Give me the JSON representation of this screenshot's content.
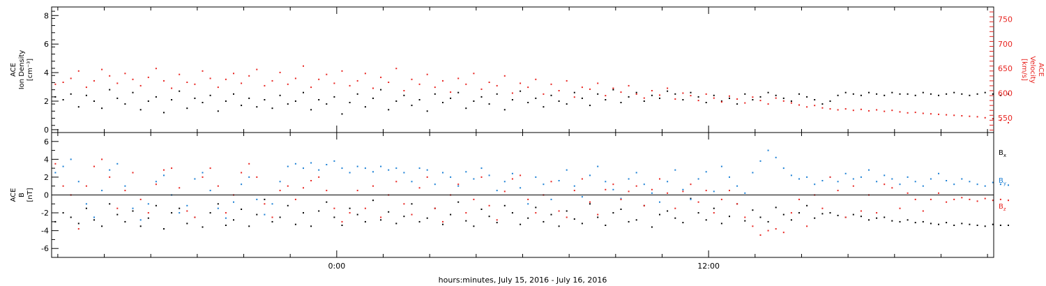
{
  "chart_data": [
    {
      "type": "scatter",
      "title": "",
      "xlabel": "hours:minutes, July 15, 2016 - July 16, 2016",
      "ylabel": "ACE Ion Density [cm⁻³]",
      "left_axis": {
        "label_lines": [
          "ACE",
          "Ion Density",
          "[cm⁻³]"
        ],
        "ylim": [
          -0.2,
          8.6
        ],
        "ticks": [
          0,
          2,
          4,
          6,
          8
        ],
        "color": "#000000"
      },
      "right_axis": {
        "label_lines": [
          "ACE",
          "Velocity",
          "[km/s]"
        ],
        "ylim": [
          520,
          775
        ],
        "ticks": [
          550,
          600,
          650,
          700,
          750
        ],
        "color": "#e8231f"
      },
      "series": [
        {
          "axis": "left",
          "color": "#000000",
          "x_start": -9.1,
          "step_hours": 0.25,
          "values": [
            2.3,
            2.1,
            2.5,
            1.6,
            2.4,
            2.0,
            1.5,
            2.8,
            2.2,
            1.8,
            2.6,
            1.4,
            2.0,
            2.3,
            1.2,
            2.1,
            2.7,
            1.5,
            2.2,
            1.9,
            2.4,
            1.3,
            2.0,
            2.5,
            1.7,
            2.2,
            1.6,
            2.1,
            1.5,
            2.4,
            1.8,
            2.0,
            2.6,
            1.4,
            2.1,
            1.8,
            2.3,
            1.1,
            1.9,
            2.5,
            1.6,
            2.2,
            2.8,
            1.4,
            2.0,
            2.4,
            1.7,
            2.1,
            1.3,
            2.5,
            1.9,
            2.2,
            2.6,
            1.5,
            2.0,
            2.3,
            1.8,
            2.5,
            1.4,
            2.1,
            2.7,
            1.9,
            2.2,
            1.6,
            2.4,
            2.0,
            1.8,
            2.6,
            2.2,
            1.7,
            2.5,
            2.1,
            2.8,
            1.9,
            2.3,
            2.6,
            2.0,
            2.4,
            2.2,
            2.7,
            2.5,
            2.1,
            2.6,
            2.3,
            1.9,
            2.4,
            2.0,
            2.2,
            1.8,
            2.5,
            2.1,
            2.3,
            2.6,
            2.4,
            2.2,
            2.0,
            2.5,
            2.3,
            2.1,
            1.8,
            2.0,
            2.4,
            2.6,
            2.5,
            2.4,
            2.6,
            2.5,
            2.4,
            2.6,
            2.5,
            2.5,
            2.4,
            2.6,
            2.5,
            2.4,
            2.5,
            2.6,
            2.5,
            2.4,
            2.5,
            2.6,
            2.5,
            2.4,
            2.5
          ]
        },
        {
          "axis": "right",
          "color": "#e8231f",
          "x_start": -9.1,
          "step_hours": 0.25,
          "values": [
            618,
            622,
            630,
            645,
            612,
            625,
            648,
            635,
            620,
            640,
            628,
            615,
            632,
            650,
            625,
            610,
            638,
            622,
            618,
            645,
            630,
            612,
            628,
            640,
            620,
            635,
            648,
            615,
            625,
            642,
            618,
            630,
            655,
            612,
            628,
            638,
            620,
            645,
            615,
            625,
            640,
            610,
            632,
            622,
            650,
            605,
            628,
            618,
            638,
            612,
            625,
            602,
            630,
            618,
            640,
            608,
            622,
            615,
            635,
            600,
            620,
            612,
            628,
            598,
            618,
            605,
            625,
            592,
            612,
            608,
            620,
            595,
            610,
            602,
            615,
            598,
            590,
            605,
            596,
            610,
            588,
            600,
            595,
            585,
            598,
            590,
            582,
            594,
            588,
            580,
            592,
            585,
            578,
            590,
            584,
            580,
            576,
            572,
            575,
            570,
            568,
            566,
            568,
            565,
            567,
            564,
            566,
            563,
            565,
            562,
            560,
            561,
            559,
            558,
            557,
            556,
            555,
            554,
            553,
            552,
            550,
            548,
            545,
            540
          ]
        }
      ]
    },
    {
      "type": "scatter",
      "title": "",
      "xlabel": "hours:minutes, July 15, 2016 - July 16, 2016",
      "ylabel": "ACE B [nT]",
      "left_axis": {
        "label_lines": [
          "ACE",
          "B",
          "[nT]"
        ],
        "ylim": [
          -7,
          7
        ],
        "ticks": [
          -6,
          -4,
          -2,
          0,
          2,
          4,
          6
        ],
        "color": "#000000"
      },
      "zero_line": true,
      "legend": {
        "placement": "right",
        "entries": [
          {
            "base": "B",
            "sub": "x",
            "color": "#000000"
          },
          {
            "base": "B",
            "sub": "y",
            "color": "#1a7fd4"
          },
          {
            "base": "B",
            "sub": "z",
            "color": "#e8231f"
          }
        ]
      },
      "series": [
        {
          "name": "Bx",
          "color": "#000000",
          "x_start": -9.1,
          "step_hours": 0.25,
          "values": [
            -3.0,
            -2.0,
            -2.5,
            -3.2,
            -1.5,
            -2.8,
            -3.5,
            -1.0,
            -2.2,
            -3.0,
            -1.8,
            -3.5,
            -2.6,
            -1.2,
            -3.8,
            -2.0,
            -1.5,
            -3.2,
            -2.5,
            -3.6,
            -2.0,
            -1.0,
            -3.4,
            -2.8,
            -1.6,
            -3.5,
            -2.2,
            -0.5,
            -3.0,
            -2.5,
            -1.2,
            -3.3,
            -2.0,
            -3.5,
            -1.8,
            -0.8,
            -2.5,
            -3.4,
            -1.5,
            -2.2,
            -3.0,
            -0.6,
            -2.8,
            -1.9,
            -3.2,
            -2.4,
            -1.0,
            -3.0,
            -2.6,
            -1.5,
            -3.3,
            -2.2,
            -0.8,
            -2.9,
            -3.5,
            -1.6,
            -2.4,
            -3.1,
            -1.2,
            -2.0,
            -3.3,
            -2.6,
            -1.4,
            -3.0,
            -2.2,
            -3.5,
            -1.8,
            -2.7,
            -3.2,
            -1.0,
            -2.5,
            -3.4,
            -2.0,
            -1.6,
            -3.0,
            -2.8,
            -1.2,
            -3.6,
            -2.2,
            -1.8,
            -2.6,
            -3.1,
            -0.4,
            -2.0,
            -2.8,
            -1.5,
            -3.2,
            -2.4,
            -1.0,
            -2.9,
            -1.7,
            -2.5,
            -3.0,
            -1.4,
            -2.2,
            -2.8,
            -2.0,
            -1.2,
            -2.6,
            -2.1,
            -2.0,
            -2.3,
            -2.5,
            -2.2,
            -2.4,
            -2.8,
            -2.6,
            -2.5,
            -2.9,
            -3.0,
            -2.8,
            -3.1,
            -3.0,
            -3.2,
            -3.3,
            -3.1,
            -3.4,
            -3.2,
            -3.3,
            -3.4,
            -3.5,
            -3.3,
            -3.4,
            -3.4
          ]
        },
        {
          "name": "By",
          "color": "#1a7fd4",
          "x_start": -9.1,
          "step_hours": 0.25,
          "values": [
            2.5,
            3.2,
            4.0,
            1.5,
            -1.0,
            -2.5,
            0.5,
            2.8,
            3.5,
            1.0,
            -1.5,
            -2.8,
            -1.0,
            1.5,
            2.2,
            0.0,
            -2.0,
            -1.2,
            1.8,
            2.5,
            0.5,
            -1.5,
            -2.6,
            -0.8,
            1.2,
            2.0,
            -0.5,
            -2.2,
            -1.0,
            1.5,
            3.2,
            3.5,
            3.0,
            3.6,
            2.8,
            3.4,
            3.8,
            3.0,
            2.5,
            3.2,
            3.0,
            2.6,
            3.2,
            2.8,
            3.0,
            2.5,
            1.5,
            3.0,
            2.8,
            1.2,
            2.5,
            2.0,
            1.0,
            2.6,
            1.8,
            3.0,
            2.2,
            0.5,
            1.5,
            2.4,
            0.8,
            -1.0,
            2.0,
            1.2,
            -0.5,
            1.6,
            2.8,
            1.0,
            -0.2,
            2.2,
            3.2,
            1.5,
            0.6,
            -0.4,
            1.8,
            2.5,
            1.2,
            0.2,
            -0.8,
            1.5,
            2.8,
            0.6,
            -0.5,
            1.8,
            2.6,
            0.4,
            3.2,
            2.0,
            1.0,
            0.2,
            2.5,
            3.8,
            5.0,
            4.2,
            3.0,
            2.2,
            1.8,
            2.0,
            1.2,
            1.6,
            2.0,
            1.5,
            2.4,
            1.8,
            2.0,
            2.8,
            1.5,
            2.2,
            1.8,
            1.2,
            2.0,
            1.5,
            1.0,
            1.8,
            2.4,
            1.6,
            1.2,
            1.8,
            1.5,
            1.2,
            1.0,
            1.4,
            1.2,
            1.1
          ]
        },
        {
          "name": "Bz",
          "color": "#e8231f",
          "x_start": -9.1,
          "step_hours": 0.25,
          "values": [
            3.5,
            1.0,
            0.0,
            -3.8,
            1.0,
            3.2,
            4.0,
            2.0,
            -1.5,
            0.5,
            2.5,
            -0.5,
            -2.0,
            1.2,
            2.8,
            3.0,
            0.8,
            -1.8,
            -2.5,
            2.0,
            3.0,
            1.0,
            -2.0,
            0.0,
            2.5,
            3.5,
            2.0,
            -1.0,
            -2.5,
            0.5,
            1.0,
            -0.5,
            0.8,
            1.6,
            2.0,
            0.5,
            -1.5,
            -3.0,
            -2.0,
            0.5,
            -1.5,
            1.0,
            -2.5,
            0.0,
            1.5,
            -1.0,
            -2.2,
            0.8,
            2.0,
            -1.5,
            -3.0,
            0.0,
            1.2,
            -2.0,
            -0.5,
            2.0,
            -1.2,
            -2.8,
            0.4,
            1.8,
            2.2,
            -0.5,
            -2.0,
            0.0,
            1.5,
            -1.8,
            -2.5,
            0.5,
            1.8,
            -0.8,
            -2.2,
            0.6,
            1.2,
            -0.5,
            0.4,
            1.0,
            -1.2,
            0.6,
            1.8,
            0.2,
            -1.5,
            0.4,
            1.2,
            -0.8,
            0.5,
            -2.0,
            -0.5,
            0.5,
            -1.0,
            -2.5,
            -3.5,
            -4.5,
            -4.0,
            -3.8,
            -4.2,
            -2.0,
            -0.5,
            -3.5,
            0.0,
            -1.5,
            2.0,
            0.5,
            -2.5,
            1.0,
            -1.8,
            0.0,
            -2.0,
            1.2,
            0.8,
            -1.5,
            0.2,
            -0.5,
            -1.8,
            -0.5,
            0.2,
            -0.8,
            -0.5,
            -0.3,
            -0.5,
            -0.7,
            -0.4,
            -0.6,
            -0.5,
            -0.6
          ]
        }
      ]
    }
  ],
  "x_axis": {
    "range_hours": [
      -9.2,
      21.2
    ],
    "major_ticks_hours": [
      0,
      12
    ],
    "major_tick_labels": [
      "0:00",
      "12:00"
    ],
    "minor_tick_step_hours": 1.5
  }
}
